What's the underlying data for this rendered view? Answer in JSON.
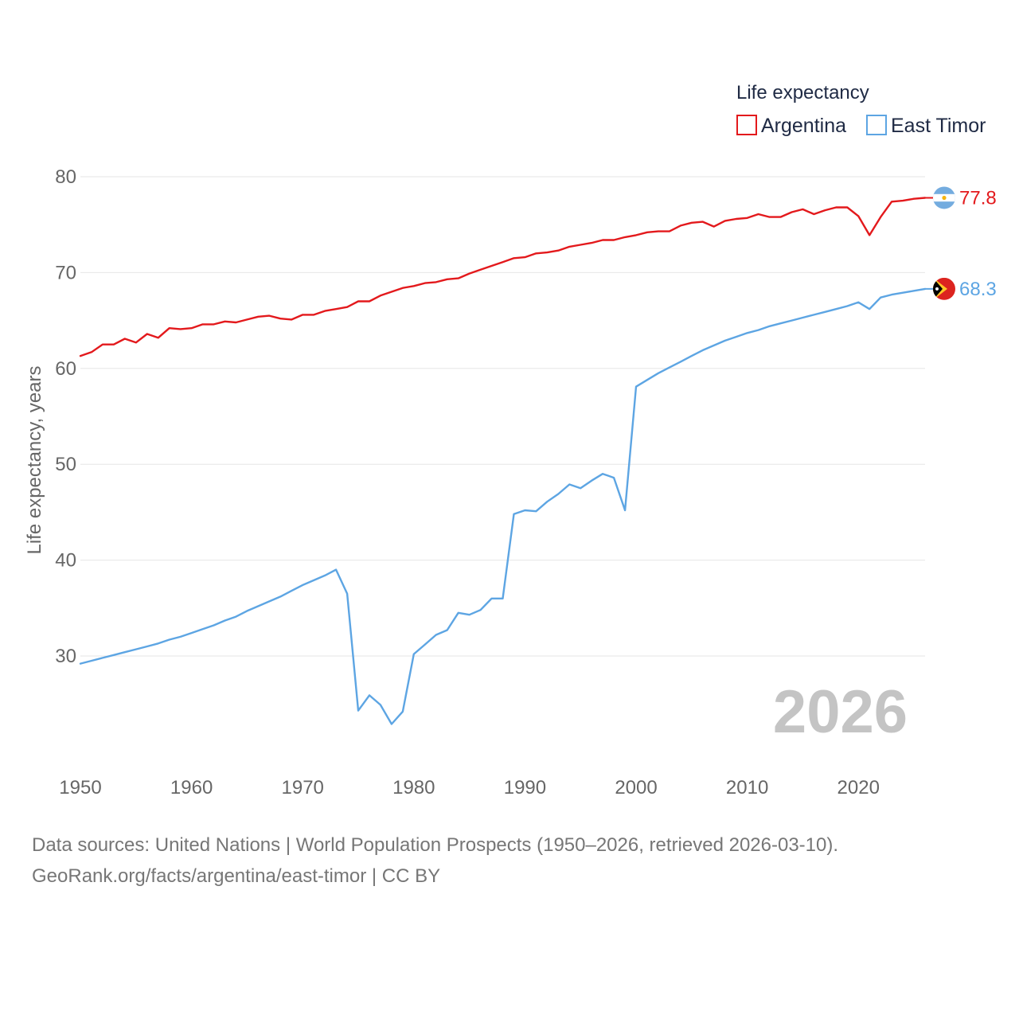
{
  "legend": {
    "title": "Life expectancy",
    "items": [
      {
        "label": "Argentina",
        "color": "#e3191c"
      },
      {
        "label": "East Timor",
        "color": "#5da5e3"
      }
    ]
  },
  "year_watermark": "2026",
  "end_labels": {
    "argentina": "77.8",
    "east_timor": "68.3"
  },
  "flags": {
    "argentina": "argentina-flag-icon",
    "east_timor": "east-timor-flag-icon"
  },
  "footer": {
    "line1": "Data sources: United Nations | World Population Prospects (1950–2026, retrieved 2026-03-10).",
    "line2": "GeoRank.org/facts/argentina/east-timor | CC BY"
  },
  "chart_data": {
    "type": "line",
    "title": "Life expectancy",
    "xlabel": "",
    "ylabel": "Life expectancy, years",
    "xlim": [
      1950,
      2026
    ],
    "ylim": [
      20,
      82
    ],
    "x_ticks": [
      1950,
      1960,
      1970,
      1980,
      1990,
      2000,
      2010,
      2020
    ],
    "y_ticks": [
      30,
      40,
      50,
      60,
      70,
      80
    ],
    "grid": true,
    "legend_position": "top-right",
    "x": [
      1950,
      1951,
      1952,
      1953,
      1954,
      1955,
      1956,
      1957,
      1958,
      1959,
      1960,
      1961,
      1962,
      1963,
      1964,
      1965,
      1966,
      1967,
      1968,
      1969,
      1970,
      1971,
      1972,
      1973,
      1974,
      1975,
      1976,
      1977,
      1978,
      1979,
      1980,
      1981,
      1982,
      1983,
      1984,
      1985,
      1986,
      1987,
      1988,
      1989,
      1990,
      1991,
      1992,
      1993,
      1994,
      1995,
      1996,
      1997,
      1998,
      1999,
      2000,
      2001,
      2002,
      2003,
      2004,
      2005,
      2006,
      2007,
      2008,
      2009,
      2010,
      2011,
      2012,
      2013,
      2014,
      2015,
      2016,
      2017,
      2018,
      2019,
      2020,
      2021,
      2022,
      2023,
      2024,
      2025,
      2026
    ],
    "series": [
      {
        "name": "Argentina",
        "values": [
          61.3,
          61.7,
          62.5,
          62.5,
          63.1,
          62.7,
          63.6,
          63.2,
          64.2,
          64.1,
          64.2,
          64.6,
          64.6,
          64.9,
          64.8,
          65.1,
          65.4,
          65.5,
          65.2,
          65.1,
          65.6,
          65.6,
          66.0,
          66.2,
          66.4,
          67.0,
          67.0,
          67.6,
          68.0,
          68.4,
          68.6,
          68.9,
          69.0,
          69.3,
          69.4,
          69.9,
          70.3,
          70.7,
          71.1,
          71.5,
          71.6,
          72.0,
          72.1,
          72.3,
          72.7,
          72.9,
          73.1,
          73.4,
          73.4,
          73.7,
          73.9,
          74.2,
          74.3,
          74.3,
          74.9,
          75.2,
          75.3,
          74.8,
          75.4,
          75.6,
          75.7,
          76.1,
          75.8,
          75.8,
          76.3,
          76.6,
          76.1,
          76.5,
          76.8,
          76.8,
          75.9,
          73.9,
          75.8,
          77.4,
          77.5,
          77.7,
          77.8
        ]
      },
      {
        "name": "East Timor",
        "values": [
          29.2,
          29.5,
          29.8,
          30.1,
          30.4,
          30.7,
          31.0,
          31.3,
          31.7,
          32.0,
          32.4,
          32.8,
          33.2,
          33.7,
          34.1,
          34.7,
          35.2,
          35.7,
          36.2,
          36.8,
          37.4,
          37.9,
          38.4,
          39.0,
          36.5,
          24.3,
          25.9,
          24.9,
          22.9,
          24.2,
          30.2,
          31.2,
          32.2,
          32.7,
          34.5,
          34.3,
          34.8,
          36.0,
          36.0,
          44.8,
          45.2,
          45.1,
          46.1,
          46.9,
          47.9,
          47.5,
          48.3,
          49.0,
          48.6,
          45.2,
          58.1,
          58.8,
          59.5,
          60.1,
          60.7,
          61.3,
          61.9,
          62.4,
          62.9,
          63.3,
          63.7,
          64.0,
          64.4,
          64.7,
          65.0,
          65.3,
          65.6,
          65.9,
          66.2,
          66.5,
          66.9,
          66.2,
          67.4,
          67.7,
          67.9,
          68.1,
          68.3
        ]
      }
    ]
  }
}
